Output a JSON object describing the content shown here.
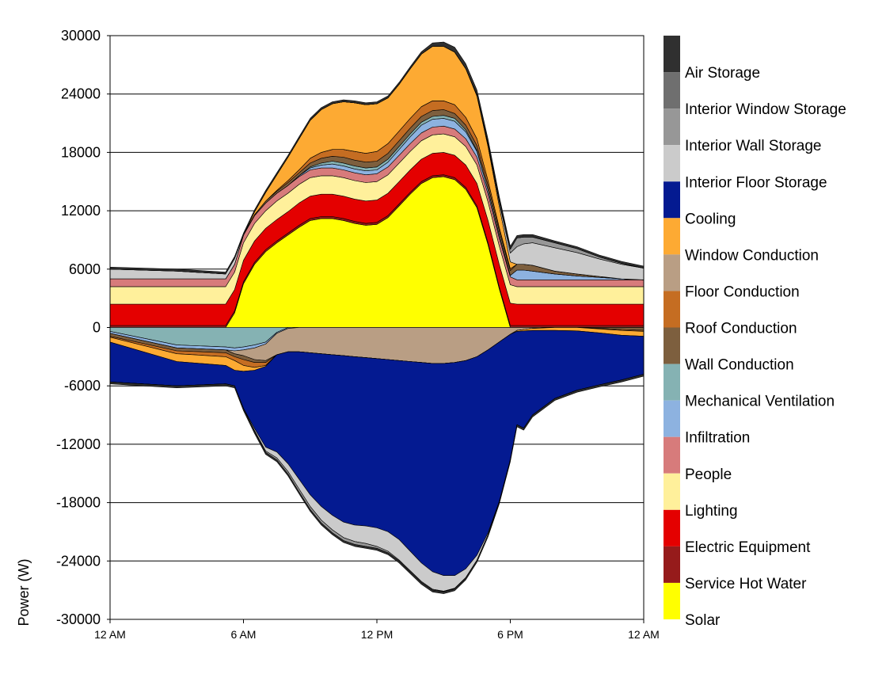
{
  "chart_data": {
    "type": "area",
    "ylabel": "Power (W)",
    "xlabel": "",
    "ylim": [
      -30000,
      30000
    ],
    "yticks": [
      "30000",
      "24000",
      "18000",
      "12000",
      "6000",
      "0",
      "-6000",
      "-12000",
      "-18000",
      "-24000",
      "-30000"
    ],
    "ytick_values": [
      30000,
      24000,
      18000,
      12000,
      6000,
      0,
      -6000,
      -12000,
      -18000,
      -24000,
      -30000
    ],
    "xticks": [
      "12 AM",
      "6 AM",
      "12 PM",
      "6 PM",
      "12 AM"
    ],
    "xtick_hours": [
      0,
      6,
      12,
      18,
      24
    ],
    "grid": "horizontal",
    "legend_position": "right",
    "x_hours": [
      0,
      3,
      5.2,
      5.6,
      6,
      6.5,
      7,
      7.5,
      8,
      8.5,
      9,
      9.5,
      10,
      10.5,
      11,
      11.5,
      12,
      12.5,
      13,
      13.5,
      14,
      14.5,
      15,
      15.5,
      16,
      16.5,
      17,
      17.5,
      18,
      18.3,
      18.6,
      19,
      20,
      21,
      22,
      23,
      24
    ],
    "legend": [
      {
        "name": "Air Storage",
        "color": "#303030"
      },
      {
        "name": "Interior Window Storage",
        "color": "#6f6f6f"
      },
      {
        "name": "Interior Wall Storage",
        "color": "#979797"
      },
      {
        "name": "Interior Floor Storage",
        "color": "#cbcbcb"
      },
      {
        "name": "Cooling",
        "color": "#041a91"
      },
      {
        "name": "Window Conduction",
        "color": "#fdaa33"
      },
      {
        "name": "Floor Conduction",
        "color": "#b99e84"
      },
      {
        "name": "Roof Conduction",
        "color": "#c56d22"
      },
      {
        "name": "Wall Conduction",
        "color": "#7d5f3e"
      },
      {
        "name": "Mechanical Ventilation",
        "color": "#85b2b3"
      },
      {
        "name": "Infiltration",
        "color": "#8db2e0"
      },
      {
        "name": "People",
        "color": "#d77b7b"
      },
      {
        "name": "Lighting",
        "color": "#fff09b"
      },
      {
        "name": "Electric Equipment",
        "color": "#e40000"
      },
      {
        "name": "Service Hot Water",
        "color": "#961b1b"
      },
      {
        "name": "Solar",
        "color": "#ffff00"
      }
    ],
    "positive_series": [
      {
        "name": "Solar",
        "color": "#ffff00",
        "values": [
          0,
          0,
          0,
          1500,
          4500,
          6500,
          7800,
          8700,
          9500,
          10300,
          11000,
          11200,
          11200,
          11000,
          10700,
          10500,
          10600,
          11300,
          12500,
          13700,
          14800,
          15400,
          15500,
          15200,
          14200,
          12300,
          8500,
          4000,
          0,
          0,
          0,
          0,
          0,
          0,
          0,
          0,
          0
        ]
      },
      {
        "name": "Service Hot Water",
        "color": "#961b1b",
        "values": [
          200,
          200,
          200,
          200,
          200,
          200,
          200,
          200,
          200,
          200,
          200,
          200,
          200,
          200,
          200,
          200,
          200,
          200,
          200,
          200,
          200,
          200,
          200,
          200,
          200,
          200,
          200,
          200,
          200,
          200,
          200,
          200,
          200,
          200,
          200,
          200,
          200
        ]
      },
      {
        "name": "Electric Equipment",
        "color": "#e40000",
        "values": [
          2200,
          2200,
          2200,
          2200,
          2200,
          2200,
          2200,
          2200,
          2200,
          2300,
          2300,
          2300,
          2300,
          2300,
          2300,
          2300,
          2300,
          2300,
          2300,
          2300,
          2300,
          2300,
          2300,
          2300,
          2300,
          2300,
          2300,
          2300,
          2300,
          2200,
          2200,
          2200,
          2200,
          2200,
          2200,
          2200,
          2200
        ]
      },
      {
        "name": "Lighting",
        "color": "#fff09b",
        "values": [
          1800,
          1800,
          1800,
          1800,
          1800,
          1800,
          1800,
          1900,
          1900,
          1900,
          1900,
          1900,
          1900,
          1900,
          1900,
          1900,
          1900,
          1900,
          1900,
          1900,
          1900,
          1900,
          1900,
          1900,
          1900,
          1900,
          1900,
          1900,
          1900,
          1800,
          1800,
          1800,
          1800,
          1800,
          1800,
          1800,
          1800
        ]
      },
      {
        "name": "People",
        "color": "#d77b7b",
        "values": [
          800,
          800,
          800,
          800,
          800,
          800,
          800,
          800,
          800,
          800,
          800,
          800,
          800,
          800,
          800,
          800,
          800,
          800,
          800,
          800,
          800,
          800,
          800,
          800,
          800,
          800,
          800,
          800,
          800,
          700,
          700,
          700,
          700,
          700,
          700,
          700,
          700
        ]
      },
      {
        "name": "Infiltration",
        "color": "#8db2e0",
        "values": [
          0,
          0,
          0,
          0,
          0,
          0,
          0,
          0,
          0,
          100,
          200,
          300,
          400,
          400,
          400,
          400,
          400,
          500,
          600,
          700,
          800,
          800,
          800,
          800,
          700,
          600,
          400,
          300,
          150,
          1000,
          1000,
          900,
          600,
          400,
          250,
          100,
          0
        ]
      },
      {
        "name": "Mechanical Ventilation",
        "color": "#85b2b3",
        "values": [
          0,
          0,
          0,
          0,
          0,
          0,
          0,
          0,
          0,
          0,
          100,
          200,
          300,
          300,
          300,
          300,
          300,
          300,
          300,
          300,
          300,
          300,
          300,
          300,
          200,
          100,
          0,
          0,
          0,
          0,
          0,
          0,
          0,
          0,
          0,
          0,
          0
        ]
      },
      {
        "name": "Wall Conduction",
        "color": "#7d5f3e",
        "values": [
          0,
          0,
          0,
          0,
          0,
          100,
          200,
          200,
          300,
          300,
          400,
          500,
          500,
          600,
          600,
          600,
          600,
          600,
          600,
          600,
          600,
          600,
          600,
          500,
          500,
          500,
          500,
          500,
          500,
          600,
          600,
          600,
          300,
          200,
          100,
          0,
          0
        ]
      },
      {
        "name": "Roof Conduction",
        "color": "#c56d22",
        "values": [
          0,
          0,
          0,
          0,
          0,
          0,
          0,
          100,
          200,
          300,
          500,
          600,
          700,
          800,
          900,
          900,
          1000,
          1000,
          1000,
          1000,
          1000,
          1000,
          900,
          900,
          800,
          700,
          500,
          300,
          200,
          0,
          0,
          0,
          0,
          0,
          0,
          0,
          0
        ]
      },
      {
        "name": "Floor Conduction",
        "color": "#b99e84",
        "values": [
          0,
          0,
          0,
          0,
          0,
          0,
          0,
          0,
          0,
          0,
          0,
          0,
          0,
          0,
          0,
          0,
          0,
          0,
          0,
          0,
          0,
          0,
          0,
          0,
          0,
          0,
          0,
          0,
          0,
          0,
          0,
          0,
          0,
          0,
          0,
          0,
          0
        ]
      },
      {
        "name": "Window Conduction",
        "color": "#fdaa33",
        "values": [
          0,
          0,
          0,
          0,
          0,
          300,
          900,
          1600,
          2400,
          3200,
          3900,
          4400,
          4700,
          4900,
          5000,
          5000,
          4900,
          4700,
          4800,
          5100,
          5400,
          5600,
          5600,
          5400,
          5000,
          4400,
          3500,
          2200,
          700,
          0,
          0,
          0,
          0,
          0,
          0,
          0,
          0
        ]
      },
      {
        "name": "Cooling",
        "color": "#041a91",
        "values": [
          0,
          0,
          0,
          0,
          0,
          0,
          0,
          0,
          0,
          0,
          0,
          0,
          0,
          0,
          0,
          0,
          0,
          0,
          0,
          0,
          0,
          0,
          0,
          0,
          0,
          0,
          0,
          0,
          0,
          0,
          0,
          0,
          0,
          0,
          0,
          0,
          0
        ]
      },
      {
        "name": "Interior Floor Storage",
        "color": "#cbcbcb",
        "values": [
          1000,
          800,
          500,
          600,
          0,
          0,
          0,
          0,
          0,
          0,
          0,
          0,
          0,
          0,
          0,
          0,
          0,
          0,
          0,
          0,
          0,
          0,
          0,
          0,
          0,
          100,
          200,
          400,
          900,
          1800,
          2100,
          2300,
          2400,
          2200,
          1800,
          1500,
          1200
        ]
      },
      {
        "name": "Interior Wall Storage",
        "color": "#979797",
        "values": [
          0,
          0,
          0,
          0,
          0,
          0,
          0,
          0,
          0,
          0,
          0,
          0,
          0,
          0,
          0,
          0,
          0,
          0,
          0,
          0,
          0,
          0,
          0,
          0,
          0,
          0,
          100,
          200,
          400,
          900,
          700,
          600,
          500,
          400,
          200,
          100,
          0
        ]
      },
      {
        "name": "Interior Window Storage",
        "color": "#6f6f6f",
        "values": [
          0,
          0,
          0,
          0,
          0,
          0,
          0,
          0,
          0,
          0,
          0,
          0,
          0,
          0,
          0,
          0,
          0,
          0,
          0,
          0,
          0,
          0,
          0,
          0,
          0,
          0,
          0,
          0,
          0,
          0,
          0,
          0,
          0,
          0,
          0,
          0,
          0
        ]
      },
      {
        "name": "Air Storage",
        "color": "#303030",
        "values": [
          200,
          200,
          200,
          200,
          200,
          200,
          200,
          200,
          200,
          200,
          200,
          200,
          200,
          200,
          200,
          200,
          200,
          200,
          200,
          200,
          250,
          350,
          450,
          500,
          500,
          500,
          450,
          400,
          300,
          250,
          250,
          250,
          200,
          200,
          200,
          200,
          200
        ]
      }
    ],
    "negative_series": [
      {
        "name": "Mechanical Ventilation",
        "color": "#85b2b3",
        "values": [
          -400,
          -1800,
          -2000,
          -2100,
          -2000,
          -1800,
          -1500,
          -500,
          0,
          0,
          0,
          0,
          0,
          0,
          0,
          0,
          0,
          0,
          0,
          0,
          0,
          0,
          0,
          0,
          0,
          0,
          0,
          0,
          0,
          0,
          0,
          0,
          0,
          0,
          0,
          0,
          0
        ]
      },
      {
        "name": "Infiltration",
        "color": "#8db2e0",
        "values": [
          -200,
          -300,
          -300,
          -300,
          -300,
          -300,
          -200,
          -100,
          -100,
          0,
          0,
          0,
          0,
          0,
          0,
          0,
          0,
          0,
          0,
          0,
          0,
          0,
          0,
          0,
          0,
          0,
          0,
          0,
          0,
          0,
          0,
          0,
          0,
          0,
          0,
          0,
          0
        ]
      },
      {
        "name": "Floor Conduction",
        "color": "#b99e84",
        "values": [
          0,
          0,
          0,
          -300,
          -600,
          -1200,
          -1700,
          -2200,
          -2400,
          -2500,
          -2600,
          -2700,
          -2800,
          -2900,
          -3000,
          -3100,
          -3200,
          -3300,
          -3400,
          -3500,
          -3600,
          -3700,
          -3700,
          -3600,
          -3400,
          -3000,
          -2300,
          -1500,
          -700,
          -300,
          -200,
          -100,
          0,
          0,
          0,
          0,
          0
        ]
      },
      {
        "name": "Wall Conduction",
        "color": "#7d5f3e",
        "values": [
          -300,
          -300,
          -300,
          -300,
          -400,
          -300,
          -200,
          0,
          0,
          0,
          0,
          0,
          0,
          0,
          0,
          0,
          0,
          0,
          0,
          0,
          0,
          0,
          0,
          0,
          0,
          0,
          0,
          0,
          0,
          0,
          0,
          0,
          0,
          0,
          -100,
          -200,
          -300
        ]
      },
      {
        "name": "Roof Conduction",
        "color": "#c56d22",
        "values": [
          -100,
          -300,
          -400,
          -400,
          -600,
          -500,
          -300,
          0,
          0,
          0,
          0,
          0,
          0,
          0,
          0,
          0,
          0,
          0,
          0,
          0,
          0,
          0,
          0,
          0,
          0,
          0,
          0,
          0,
          0,
          0,
          0,
          0,
          0,
          0,
          -50,
          -100,
          -100
        ]
      },
      {
        "name": "Window Conduction",
        "color": "#fdaa33",
        "values": [
          -500,
          -800,
          -900,
          -1000,
          -600,
          -300,
          -100,
          0,
          0,
          0,
          0,
          0,
          0,
          0,
          0,
          0,
          0,
          0,
          0,
          0,
          0,
          0,
          0,
          0,
          0,
          0,
          0,
          0,
          0,
          -100,
          -150,
          -200,
          -300,
          -350,
          -400,
          -500,
          -500
        ]
      },
      {
        "name": "Cooling",
        "color": "#041a91",
        "values": [
          -4100,
          -2500,
          -1900,
          -1600,
          -3800,
          -6000,
          -8300,
          -10000,
          -11500,
          -13100,
          -14600,
          -15700,
          -16500,
          -17100,
          -17300,
          -17300,
          -17400,
          -17700,
          -18400,
          -19500,
          -20600,
          -21400,
          -21800,
          -21900,
          -21400,
          -20400,
          -18800,
          -16400,
          -12900,
          -9600,
          -10000,
          -8700,
          -7000,
          -6100,
          -5350,
          -4600,
          -3900
        ]
      },
      {
        "name": "Interior Floor Storage",
        "color": "#cbcbcb",
        "values": [
          0,
          0,
          0,
          0,
          -50,
          -200,
          -400,
          -600,
          -800,
          -1000,
          -1200,
          -1400,
          -1500,
          -1600,
          -1700,
          -1800,
          -1900,
          -2000,
          -2100,
          -2000,
          -1900,
          -1800,
          -1600,
          -1300,
          -900,
          -500,
          -200,
          -50,
          0,
          0,
          0,
          0,
          0,
          0,
          0,
          0,
          0
        ]
      },
      {
        "name": "Interior Wall Storage",
        "color": "#979797",
        "values": [
          0,
          0,
          0,
          0,
          0,
          -100,
          -150,
          -200,
          -250,
          -300,
          -300,
          -300,
          -300,
          -300,
          -300,
          -300,
          -200,
          -150,
          -100,
          -100,
          -100,
          -80,
          -60,
          -50,
          -40,
          -30,
          0,
          0,
          0,
          0,
          0,
          0,
          0,
          0,
          0,
          0,
          0
        ]
      },
      {
        "name": "Air Storage",
        "color": "#303030",
        "values": [
          -200,
          -200,
          -200,
          -200,
          -200,
          -200,
          -200,
          -200,
          -200,
          -200,
          -200,
          -200,
          -200,
          -200,
          -200,
          -200,
          -200,
          -200,
          -200,
          -200,
          -200,
          -200,
          -200,
          -200,
          -200,
          -200,
          -200,
          -200,
          -200,
          -200,
          -200,
          -200,
          -200,
          -200,
          -200,
          -200,
          -200
        ]
      }
    ]
  }
}
